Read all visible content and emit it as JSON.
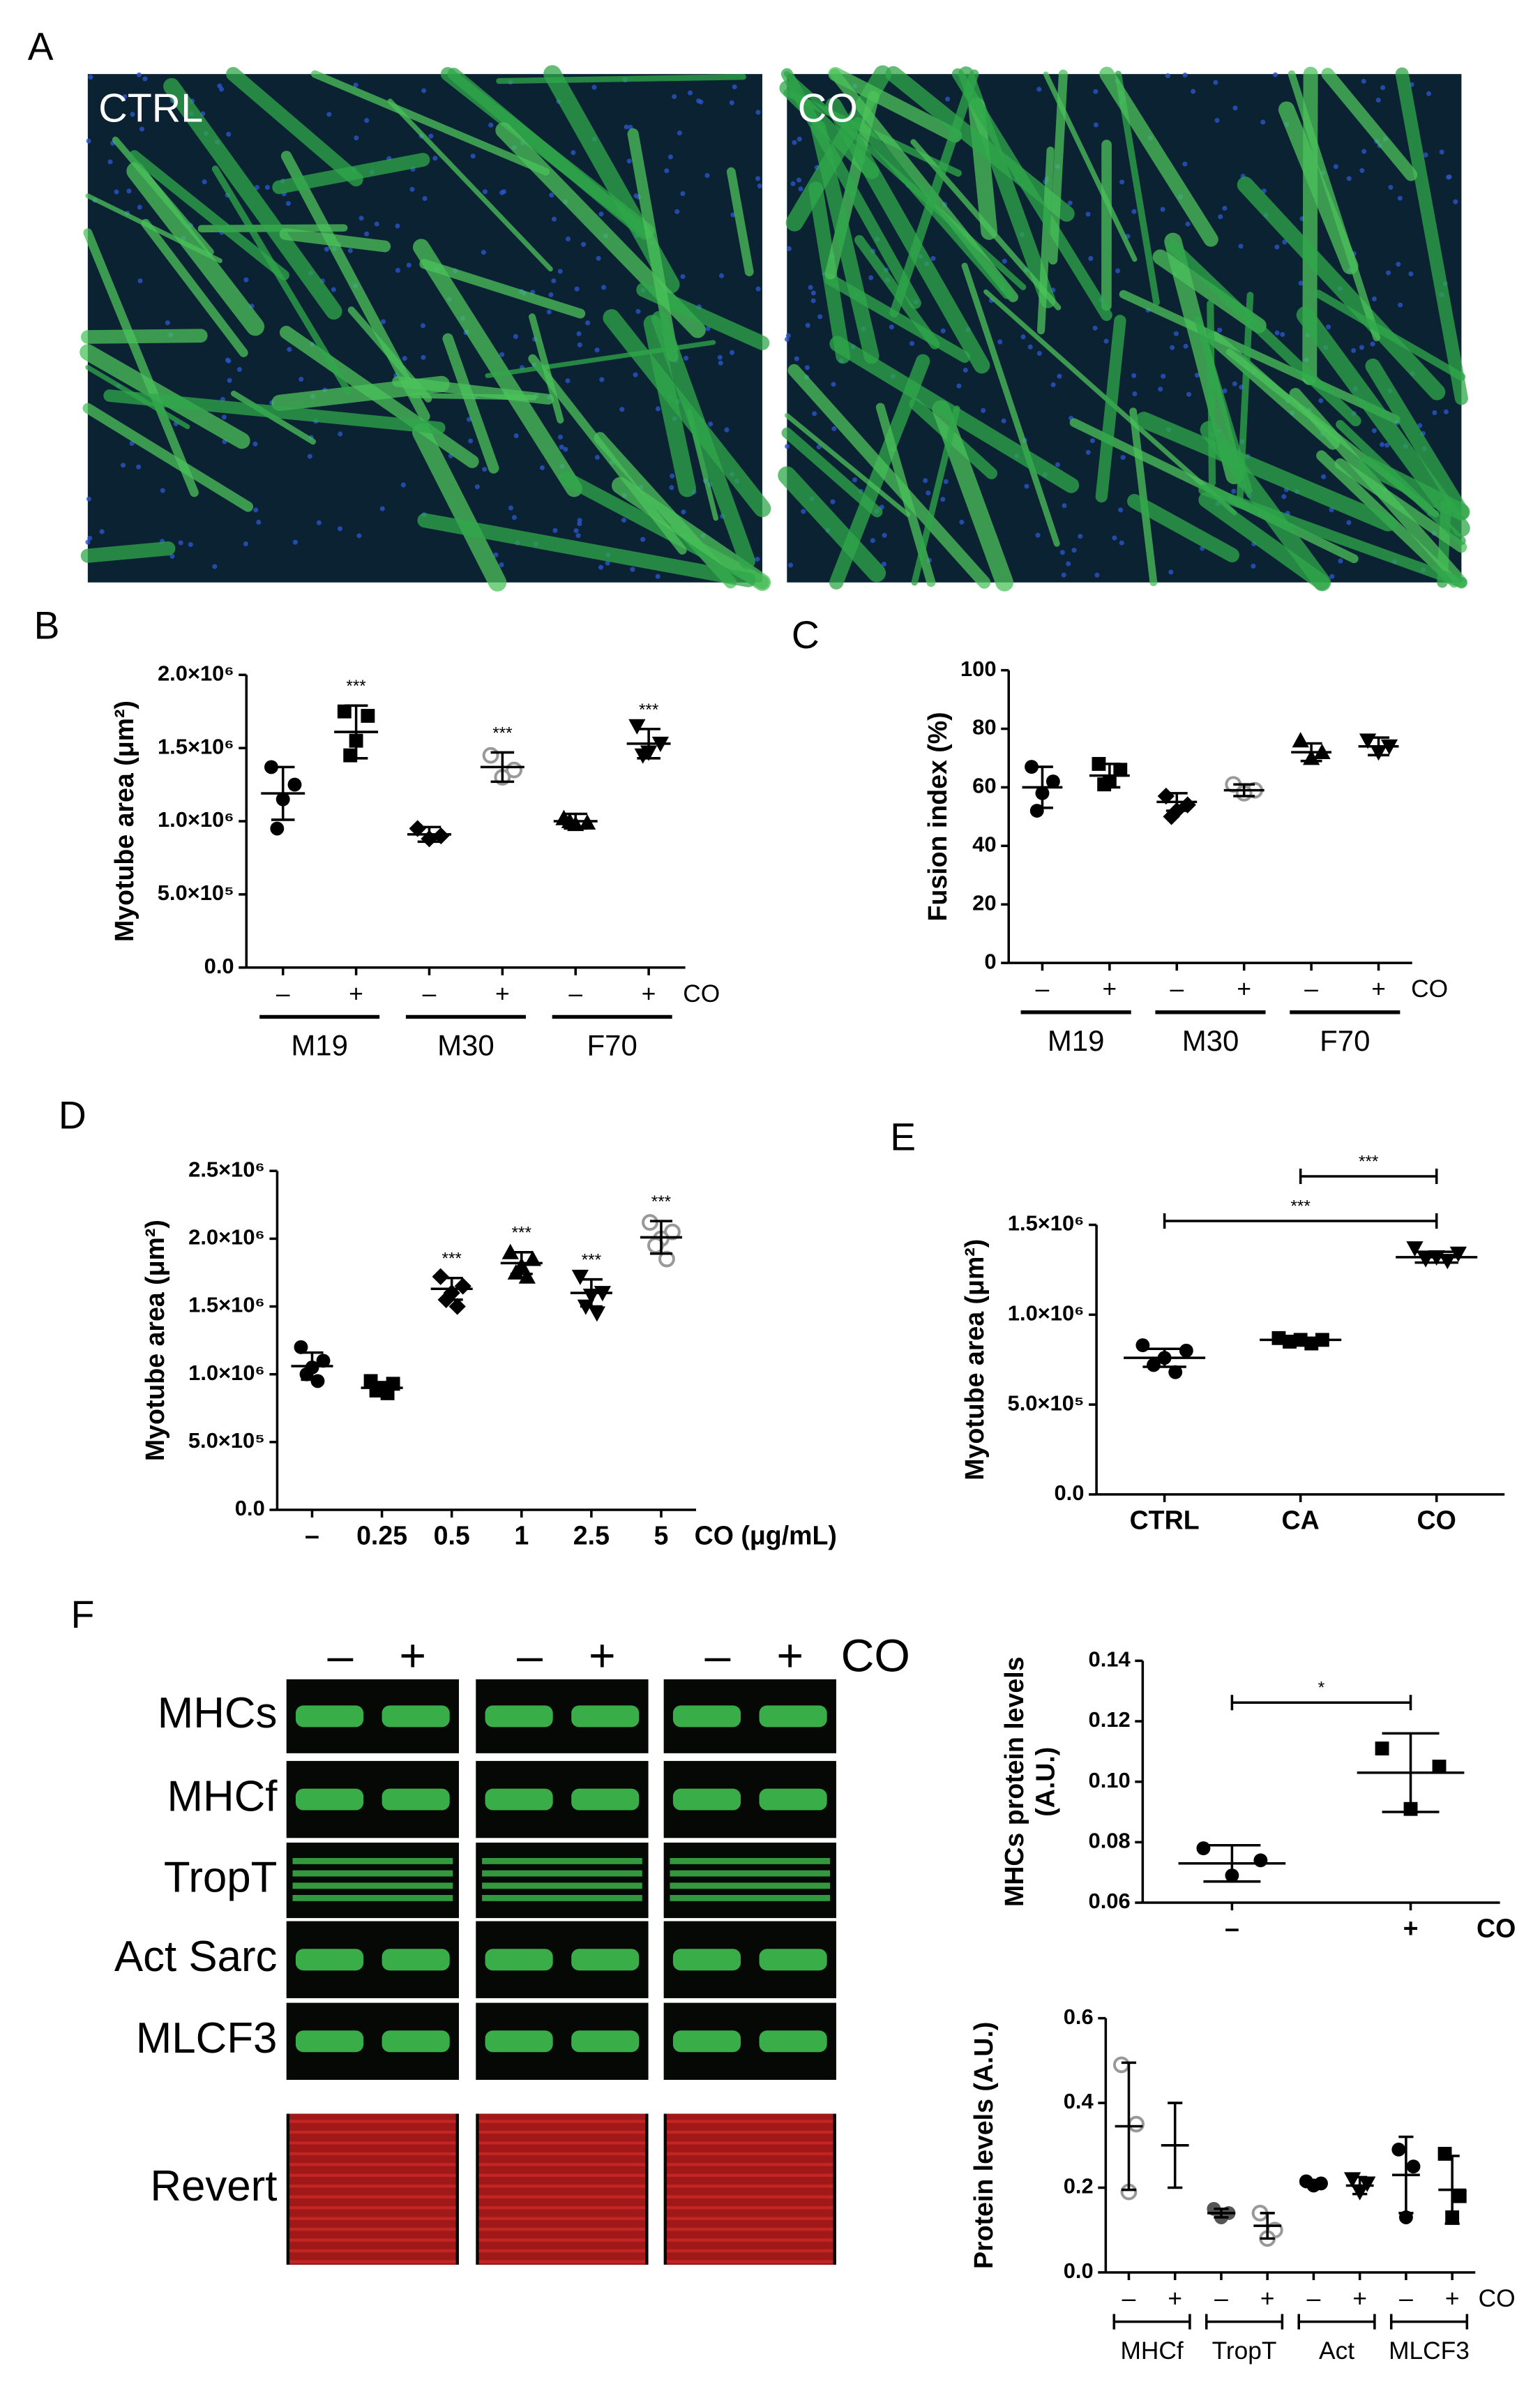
{
  "panel_labels": [
    "A",
    "B",
    "C",
    "D",
    "E",
    "F"
  ],
  "images": {
    "labels": [
      "CTRL",
      "CO"
    ]
  },
  "blot": {
    "header": {
      "conditions": [
        "–",
        "+",
        "–",
        "+",
        "–",
        "+"
      ],
      "label": "CO"
    },
    "rows": [
      "MHCs",
      "MHCf",
      "TropT",
      "Act Sarc",
      "MLCF3",
      "Revert"
    ]
  },
  "chart_data": [
    {
      "type": "dot",
      "ylabel": "Myotube area (μm²)",
      "xlabel": "CO",
      "group_style": "underline",
      "ylim": [
        0,
        2000000
      ],
      "yticks": [
        {
          "value": 0,
          "label": "0.0"
        },
        {
          "value": 500000,
          "label": "5.0×10⁵"
        },
        {
          "value": 1000000,
          "label": "1.0×10⁶"
        },
        {
          "value": 1500000,
          "label": "1.5×10⁶"
        },
        {
          "value": 2000000,
          "label": "2.0×10⁶"
        }
      ],
      "groups": [
        {
          "name": "M19",
          "conditions": [
            {
              "label": "–",
              "marker": "circle",
              "color": "#000000",
              "points": [
                1370000,
                1250000,
                1150000,
                950000
              ],
              "mean": 1190000,
              "sd": 180000
            },
            {
              "label": "+",
              "marker": "square",
              "color": "#000000",
              "points": [
                1750000,
                1720000,
                1550000,
                1450000
              ],
              "mean": 1610000,
              "sd": 180000,
              "annotation": "***"
            }
          ]
        },
        {
          "name": "M30",
          "conditions": [
            {
              "label": "–",
              "marker": "diamond",
              "color": "#000000",
              "points": [
                950000,
                900000,
                880000
              ],
              "mean": 910000,
              "sd": 50000
            },
            {
              "label": "+",
              "marker": "open-circle",
              "color": "#999999",
              "points": [
                1450000,
                1350000,
                1300000
              ],
              "mean": 1370000,
              "sd": 100000,
              "annotation": "***"
            }
          ]
        },
        {
          "name": "F70",
          "conditions": [
            {
              "label": "–",
              "marker": "triangle",
              "color": "#000000",
              "points": [
                1020000,
                990000,
                980000,
                1000000
              ],
              "mean": 1000000,
              "sd": 50000
            },
            {
              "label": "+",
              "marker": "triangle-down",
              "color": "#000000",
              "points": [
                1650000,
                1530000,
                1470000,
                1450000
              ],
              "mean": 1530000,
              "sd": 100000,
              "annotation": "***"
            }
          ]
        }
      ]
    },
    {
      "type": "dot",
      "ylabel": "Fusion index (%)",
      "xlabel": "CO",
      "group_style": "underline",
      "ylim": [
        0,
        100
      ],
      "yticks": [
        0,
        20,
        40,
        60,
        80,
        100
      ],
      "groups": [
        {
          "name": "M19",
          "conditions": [
            {
              "label": "–",
              "marker": "circle",
              "color": "#000000",
              "points": [
                67,
                62,
                58,
                52
              ],
              "mean": 60,
              "sd": 7
            },
            {
              "label": "+",
              "marker": "square",
              "color": "#000000",
              "points": [
                68,
                66,
                62,
                61
              ],
              "mean": 64,
              "sd": 4
            }
          ]
        },
        {
          "name": "M30",
          "conditions": [
            {
              "label": "–",
              "marker": "diamond",
              "color": "#000000",
              "points": [
                57,
                54,
                52,
                50
              ],
              "mean": 55,
              "sd": 3
            },
            {
              "label": "+",
              "marker": "open-circle",
              "color": "#999999",
              "points": [
                61,
                59,
                58
              ],
              "mean": 59,
              "sd": 2
            }
          ]
        },
        {
          "name": "F70",
          "conditions": [
            {
              "label": "–",
              "marker": "triangle",
              "color": "#000000",
              "points": [
                76,
                72,
                70
              ],
              "mean": 72,
              "sd": 3
            },
            {
              "label": "+",
              "marker": "triangle-down",
              "color": "#000000",
              "points": [
                76,
                74,
                72
              ],
              "mean": 74,
              "sd": 3
            }
          ]
        }
      ]
    },
    {
      "type": "dot",
      "ylabel": "Myotube area (μm²)",
      "xlabel": "CO (μg/mL)",
      "ylim": [
        0,
        2500000
      ],
      "yticks": [
        {
          "value": 0,
          "label": "0.0"
        },
        {
          "value": 500000,
          "label": "5.0×10⁵"
        },
        {
          "value": 1000000,
          "label": "1.0×10⁶"
        },
        {
          "value": 1500000,
          "label": "1.5×10⁶"
        },
        {
          "value": 2000000,
          "label": "2.0×10⁶"
        },
        {
          "value": 2500000,
          "label": "2.5×10⁶"
        }
      ],
      "conditions": [
        {
          "label": "–",
          "marker": "circle",
          "color": "#000000",
          "points": [
            1200000,
            1100000,
            1050000,
            1000000,
            950000
          ],
          "mean": 1060000,
          "sd": 100000
        },
        {
          "label": "0.25",
          "marker": "square",
          "color": "#000000",
          "points": [
            950000,
            930000,
            900000,
            880000,
            860000
          ],
          "mean": 900000,
          "sd": 40000
        },
        {
          "label": "0.5",
          "marker": "diamond",
          "color": "#000000",
          "points": [
            1720000,
            1650000,
            1600000,
            1550000,
            1500000
          ],
          "mean": 1630000,
          "sd": 80000,
          "annotation": "***"
        },
        {
          "label": "1",
          "marker": "triangle",
          "color": "#000000",
          "points": [
            1900000,
            1850000,
            1800000,
            1750000,
            1720000
          ],
          "mean": 1820000,
          "sd": 80000,
          "annotation": "***"
        },
        {
          "label": "2.5",
          "marker": "triangle-down",
          "color": "#000000",
          "points": [
            1720000,
            1600000,
            1580000,
            1500000,
            1450000
          ],
          "mean": 1600000,
          "sd": 100000,
          "annotation": "***"
        },
        {
          "label": "5",
          "marker": "open-circle",
          "color": "#999999",
          "points": [
            2120000,
            2050000,
            2000000,
            1950000,
            1850000
          ],
          "mean": 2010000,
          "sd": 120000,
          "annotation": "***"
        }
      ]
    },
    {
      "type": "dot",
      "ylabel": "Myotube area (μm²)",
      "ylim": [
        0,
        1500000
      ],
      "yticks": [
        {
          "value": 0,
          "label": "0.0"
        },
        {
          "value": 500000,
          "label": "5.0×10⁵"
        },
        {
          "value": 1000000,
          "label": "1.0×10⁶"
        },
        {
          "value": 1500000,
          "label": "1.5×10⁶"
        }
      ],
      "conditions": [
        {
          "label": "CTRL",
          "marker": "circle",
          "color": "#000000",
          "points": [
            830000,
            800000,
            760000,
            720000,
            680000
          ],
          "mean": 760000,
          "sd": 50000
        },
        {
          "label": "CA",
          "marker": "square",
          "color": "#000000",
          "points": [
            870000,
            860000,
            860000,
            850000,
            840000
          ],
          "mean": 860000,
          "sd": 10000
        },
        {
          "label": "CO",
          "marker": "triangle-down",
          "color": "#000000",
          "points": [
            1370000,
            1340000,
            1320000,
            1310000,
            1300000
          ],
          "mean": 1320000,
          "sd": 30000
        }
      ],
      "brackets": [
        {
          "from": "CTRL",
          "to": "CO",
          "label": "***"
        },
        {
          "from": "CA",
          "to": "CO",
          "label": "***"
        }
      ]
    },
    {
      "type": "dot",
      "ylabel": [
        "MHCs  protein levels",
        "(A.U.)"
      ],
      "xlabel": "CO",
      "ylim": [
        0.06,
        0.14
      ],
      "yticks": [
        0.06,
        0.08,
        {
          "value": 0.1,
          "label": "0.10"
        },
        0.12,
        0.14
      ],
      "conditions": [
        {
          "label": "–",
          "marker": "circle",
          "color": "#000000",
          "points": [
            0.078,
            0.074,
            0.069
          ],
          "mean": 0.073,
          "sd": 0.006
        },
        {
          "label": "+",
          "marker": "square",
          "color": "#000000",
          "points": [
            0.111,
            0.105,
            0.091
          ],
          "mean": 0.103,
          "sd": 0.013
        }
      ],
      "brackets": [
        {
          "from": "–",
          "to": "+",
          "label": "*"
        }
      ]
    },
    {
      "type": "dot",
      "ylabel": "Protein levels (A.U.)",
      "xlabel": "CO",
      "group_style": "bracket",
      "ylim": [
        0,
        0.6
      ],
      "yticks": [
        {
          "value": 0,
          "label": "0.0"
        },
        0.2,
        0.4,
        0.6
      ],
      "groups": [
        {
          "name": "MHCf",
          "conditions": [
            {
              "label": "–",
              "marker": "open-circle",
              "color": "#999999",
              "points": [
                0.49,
                0.35,
                0.19
              ],
              "mean": 0.345,
              "sd": 0.15
            },
            {
              "label": "+",
              "marker": "circle",
              "color": "#000000",
              "points": [],
              "mean": 0.3,
              "sd": 0.1
            }
          ]
        },
        {
          "name": "TropT",
          "conditions": [
            {
              "label": "–",
              "marker": "circle",
              "color": "#555555",
              "points": [
                0.15,
                0.14,
                0.13
              ],
              "mean": 0.14,
              "sd": 0.01
            },
            {
              "label": "+",
              "marker": "open-circle",
              "color": "#999999",
              "points": [
                0.14,
                0.1,
                0.08
              ],
              "mean": 0.11,
              "sd": 0.03
            }
          ]
        },
        {
          "name": "Act",
          "conditions": [
            {
              "label": "–",
              "marker": "circle",
              "color": "#000000",
              "points": [
                0.215,
                0.21,
                0.205
              ],
              "mean": 0.21,
              "sd": 0.005
            },
            {
              "label": "+",
              "marker": "triangle-down",
              "color": "#000000",
              "points": [
                0.22,
                0.21,
                0.19
              ],
              "mean": 0.205,
              "sd": 0.02
            }
          ]
        },
        {
          "name": "MLCF3",
          "conditions": [
            {
              "label": "–",
              "marker": "circle",
              "color": "#000000",
              "points": [
                0.29,
                0.25,
                0.13
              ],
              "mean": 0.23,
              "sd": 0.09
            },
            {
              "label": "+",
              "marker": "square",
              "color": "#000000",
              "points": [
                0.28,
                0.18,
                0.13
              ],
              "mean": 0.195,
              "sd": 0.08
            }
          ]
        }
      ]
    }
  ]
}
